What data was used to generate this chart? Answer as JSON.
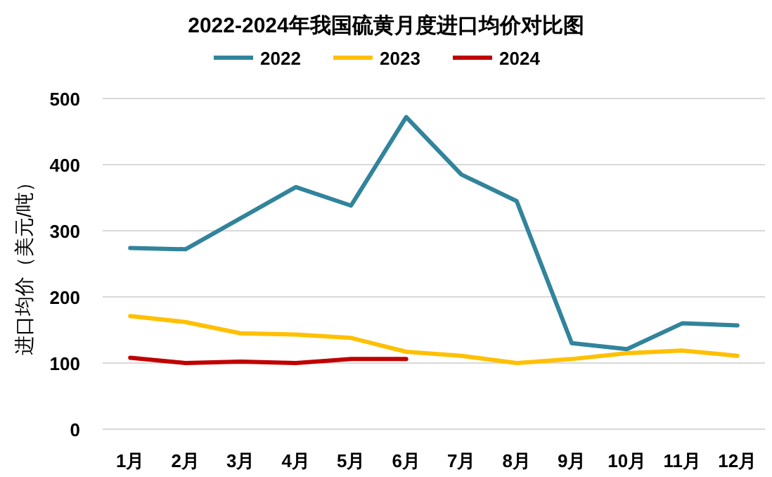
{
  "chart_data": {
    "type": "line",
    "title": "2022-2024年我国硫黄月度进口均价对比图",
    "ylabel": "进口均价（美元/吨）",
    "categories": [
      "1月",
      "2月",
      "3月",
      "4月",
      "5月",
      "6月",
      "7月",
      "8月",
      "9月",
      "10月",
      "11月",
      "12月"
    ],
    "series": [
      {
        "name": "2022",
        "color": "#31849b",
        "values": [
          274,
          272,
          319,
          366,
          338,
          472,
          385,
          345,
          130,
          121,
          160,
          157
        ]
      },
      {
        "name": "2023",
        "color": "#ffc000",
        "values": [
          171,
          162,
          145,
          143,
          138,
          117,
          111,
          100,
          106,
          115,
          119,
          111
        ]
      },
      {
        "name": "2024",
        "color": "#c00000",
        "values": [
          108,
          100,
          102,
          100,
          106,
          106,
          null,
          null,
          null,
          null,
          null,
          null
        ]
      }
    ],
    "ylim": [
      0,
      500
    ],
    "yticks": [
      0,
      100,
      200,
      300,
      400,
      500
    ],
    "grid": "y",
    "legend": "top",
    "line_style": "solid",
    "marker": "none"
  }
}
